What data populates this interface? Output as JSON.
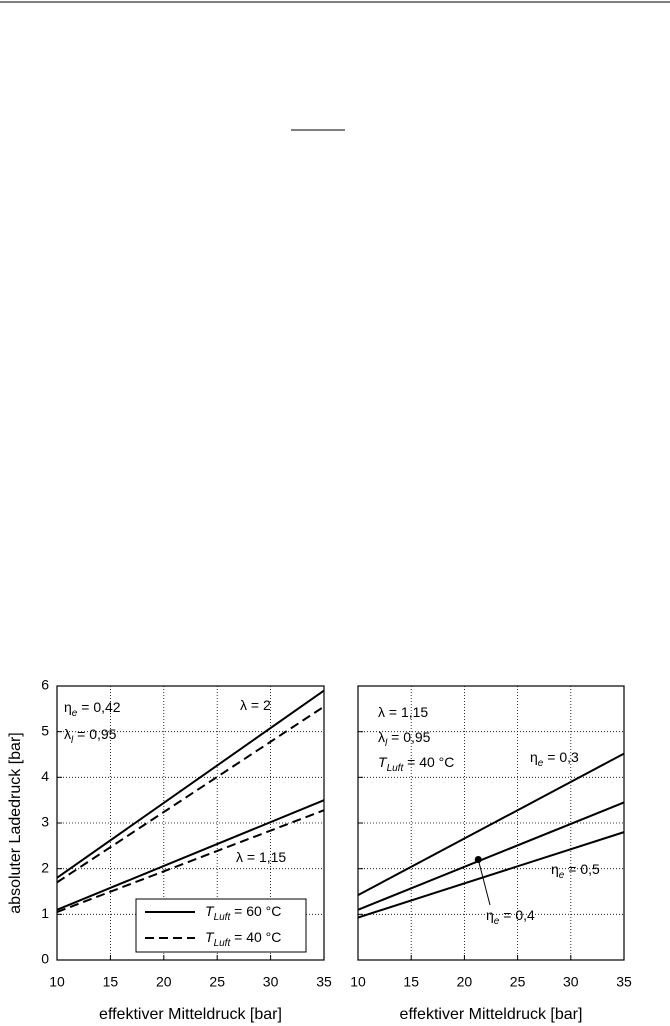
{
  "chart_data": [
    {
      "type": "line",
      "xlabel": "effektiver Mitteldruck [bar]",
      "ylabel": "absoluter Ladedruck [bar]",
      "x": [
        10,
        35
      ],
      "xlim": [
        10,
        35
      ],
      "ylim": [
        0,
        6
      ],
      "xticks": [
        10,
        15,
        20,
        25,
        30,
        35
      ],
      "yticks": [
        0,
        1,
        2,
        3,
        4,
        5,
        6
      ],
      "ytick_labels": true,
      "grid": true,
      "series": [
        {
          "name": [
            {
              "text": "T",
              "italic": true
            },
            {
              "text": "Luft",
              "sub": true
            },
            {
              "text": " = 60 °C"
            }
          ],
          "color": "#000000",
          "dashed": false,
          "curves": [
            {
              "values": [
                1.8,
                5.9
              ]
            },
            {
              "values": [
                1.1,
                3.5
              ]
            }
          ]
        },
        {
          "name": [
            {
              "text": "T",
              "italic": true
            },
            {
              "text": "Luft",
              "sub": true
            },
            {
              "text": " = 40 °C"
            }
          ],
          "color": "#000000",
          "dashed": true,
          "curves": [
            {
              "values": [
                1.7,
                5.55
              ]
            },
            {
              "values": [
                1.05,
                3.28
              ]
            }
          ]
        }
      ],
      "annotations": [
        [
          {
            "text": "η"
          },
          {
            "text": "e",
            "sub": true
          },
          {
            "text": " = 0,42"
          }
        ],
        [
          {
            "text": "λ"
          },
          {
            "text": "l",
            "sub": true
          },
          {
            "text": " = 0,95"
          }
        ],
        [
          {
            "text": "λ = 2"
          }
        ],
        [
          {
            "text": "λ = 1,15"
          }
        ]
      ]
    },
    {
      "type": "line",
      "xlabel": "effektiver Mitteldruck [bar]",
      "x": [
        10,
        35
      ],
      "xlim": [
        10,
        35
      ],
      "ylim": [
        0,
        6
      ],
      "xticks": [
        10,
        15,
        20,
        25,
        30,
        35
      ],
      "yticks": [
        0,
        1,
        2,
        3,
        4,
        5,
        6
      ],
      "ytick_labels": false,
      "grid": true,
      "series": [
        {
          "color": "#000000",
          "dashed": false,
          "curves": [
            {
              "values": [
                1.42,
                4.52
              ]
            },
            {
              "values": [
                1.1,
                3.45
              ]
            },
            {
              "values": [
                0.93,
                2.8
              ]
            }
          ]
        }
      ],
      "marker": {
        "x": 21.3,
        "y": 2.2
      },
      "annotations": [
        [
          {
            "text": "λ = 1,15"
          }
        ],
        [
          {
            "text": "λ"
          },
          {
            "text": "l",
            "sub": true
          },
          {
            "text": " = 0,95"
          }
        ],
        [
          {
            "text": "T",
            "italic": true
          },
          {
            "text": "Luft",
            "sub": true
          },
          {
            "text": " = 40 °C"
          }
        ],
        [
          {
            "text": "η"
          },
          {
            "text": "e",
            "sub": true
          },
          {
            "text": " = 0,3"
          }
        ],
        [
          {
            "text": "η"
          },
          {
            "text": "e",
            "sub": true
          },
          {
            "text": " = 0,5"
          }
        ],
        [
          {
            "text": "η"
          },
          {
            "text": "e",
            "sub": true
          },
          {
            "text": " = 0,4"
          }
        ]
      ]
    }
  ]
}
